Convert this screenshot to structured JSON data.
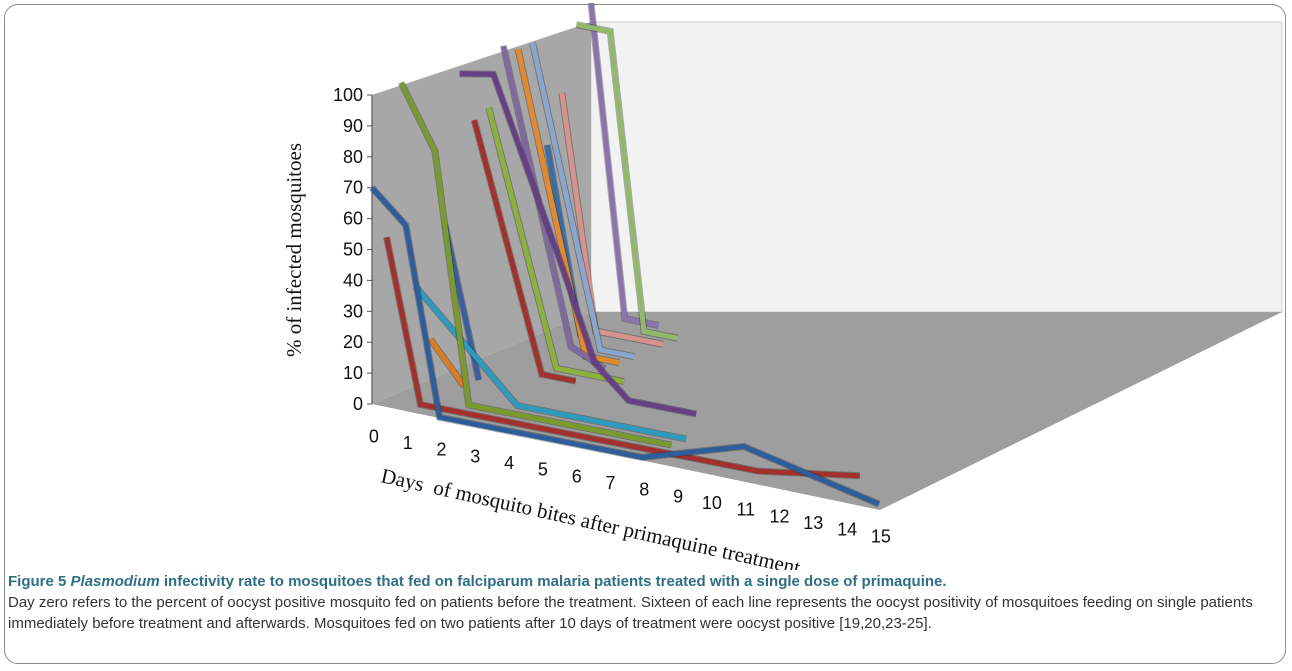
{
  "chart_data": {
    "type": "line",
    "style": "3d-line",
    "ylabel": "% of infected mosquitoes",
    "xlabel": "Days  of mosquito bites after primaquine treatment",
    "ylim": [
      0,
      100
    ],
    "yticks": [
      "0",
      "10",
      "20",
      "30",
      "40",
      "50",
      "60",
      "70",
      "80",
      "90",
      "100"
    ],
    "x_ticks": [
      "0",
      "1",
      "2",
      "3",
      "4",
      "5",
      "6",
      "7",
      "8",
      "9",
      "10",
      "11",
      "12",
      "13",
      "14",
      "15"
    ],
    "grid": false,
    "legend": "none",
    "series": [
      {
        "color": "#2e5d9b",
        "points": [
          [
            0,
            70
          ],
          [
            1,
            60
          ],
          [
            2,
            0
          ],
          [
            8,
            0
          ],
          [
            11,
            10
          ],
          [
            15,
            0
          ]
        ]
      },
      {
        "color": "#a2302d",
        "points": [
          [
            0,
            52
          ],
          [
            1,
            0
          ],
          [
            11,
            0
          ],
          [
            14,
            5
          ]
        ]
      },
      {
        "color": "#7a9a2e",
        "points": [
          [
            0,
            100
          ],
          [
            1,
            80
          ],
          [
            2,
            0
          ],
          [
            8,
            0
          ]
        ]
      },
      {
        "color": "#2c9bbd",
        "points": [
          [
            0,
            32
          ],
          [
            3,
            0
          ],
          [
            8,
            0
          ]
        ]
      },
      {
        "color": "#e07b1e",
        "points": [
          [
            0,
            13
          ],
          [
            1,
            0
          ]
        ]
      },
      {
        "color": "#3a5fa0",
        "points": [
          [
            0,
            48
          ],
          [
            1,
            0
          ]
        ]
      },
      {
        "color": "#673f86",
        "points": [
          [
            0,
            95
          ],
          [
            1,
            97
          ],
          [
            3,
            40
          ],
          [
            4,
            10
          ],
          [
            5,
            0
          ],
          [
            7,
            0
          ]
        ]
      },
      {
        "color": "#a2302d",
        "points": [
          [
            0,
            78
          ],
          [
            2,
            0
          ],
          [
            3,
            0
          ]
        ]
      },
      {
        "color": "#8bb23a",
        "points": [
          [
            0,
            80
          ],
          [
            2,
            0
          ],
          [
            4,
            0
          ]
        ]
      },
      {
        "color": "#8069a2",
        "points": [
          [
            0,
            98
          ],
          [
            2,
            5
          ],
          [
            3,
            0
          ]
        ]
      },
      {
        "color": "#e58a2c",
        "points": [
          [
            0,
            95
          ],
          [
            2,
            0
          ],
          [
            3,
            0
          ]
        ]
      },
      {
        "color": "#8aa5ce",
        "points": [
          [
            0,
            95
          ],
          [
            2,
            0
          ],
          [
            3,
            0
          ]
        ]
      },
      {
        "color": "#3a6fa4",
        "points": [
          [
            0,
            60
          ],
          [
            1,
            0
          ]
        ]
      },
      {
        "color": "#d8928d",
        "points": [
          [
            0,
            75
          ],
          [
            1,
            0
          ],
          [
            3,
            0
          ]
        ]
      },
      {
        "color": "#93b86c",
        "points": [
          [
            0,
            95
          ],
          [
            1,
            95
          ],
          [
            2,
            0
          ],
          [
            3,
            0
          ]
        ]
      },
      {
        "color": "#8974ad",
        "points": [
          [
            0,
            100
          ],
          [
            1,
            0
          ],
          [
            2,
            0
          ]
        ]
      }
    ]
  },
  "caption": {
    "label": "Figure 5",
    "title_italic": "Plasmodium",
    "title_rest": "infectivity rate to mosquitoes that fed on falciparum malaria patients treated with a single dose of primaquine.",
    "body": "Day zero refers to the percent of oocyst positive mosquito fed on patients before the treatment. Sixteen of each line represents the oocyst positivity of mosquitoes feeding on single patients immediately before treatment and afterwards. Mosquitoes fed on two patients after 10 days of treatment were oocyst positive [19,20,23-25]."
  }
}
